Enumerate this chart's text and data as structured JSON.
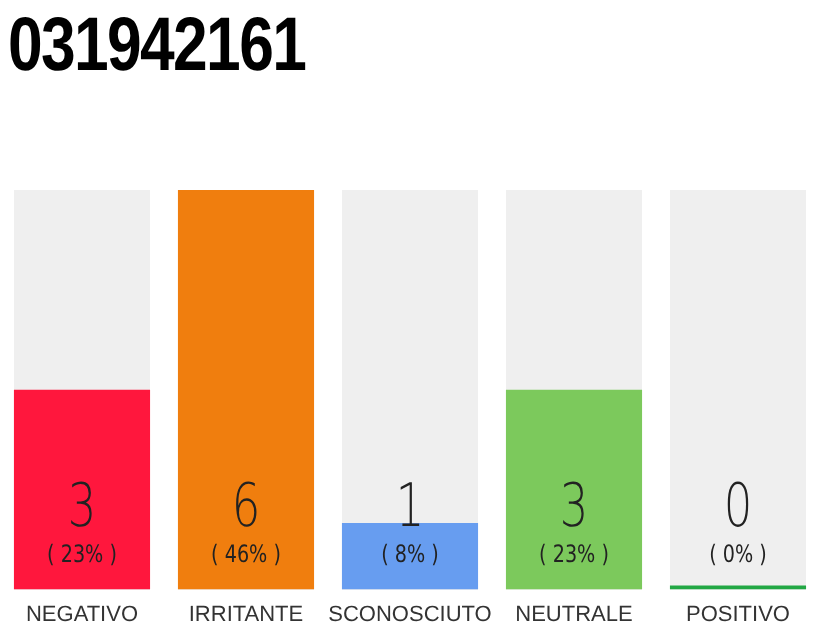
{
  "chart_data": {
    "type": "bar",
    "title": "031942161",
    "categories": [
      "NEGATIVO",
      "IRRITANTE",
      "SCONOSCIUTO",
      "NEUTRALE",
      "POSITIVO"
    ],
    "values": [
      3,
      6,
      1,
      3,
      0
    ],
    "colors": [
      "#ff173d",
      "#f07e0e",
      "#679df0",
      "#7cc95c",
      "#22a744"
    ],
    "ylim": [
      0,
      6
    ],
    "tick_labels": "x",
    "grid": false,
    "legend": false,
    "data_labels": true,
    "annotations": [
      "( 23% )",
      "( 46% )",
      "( 8% )",
      "( 23% )",
      "( 0% )"
    ]
  }
}
